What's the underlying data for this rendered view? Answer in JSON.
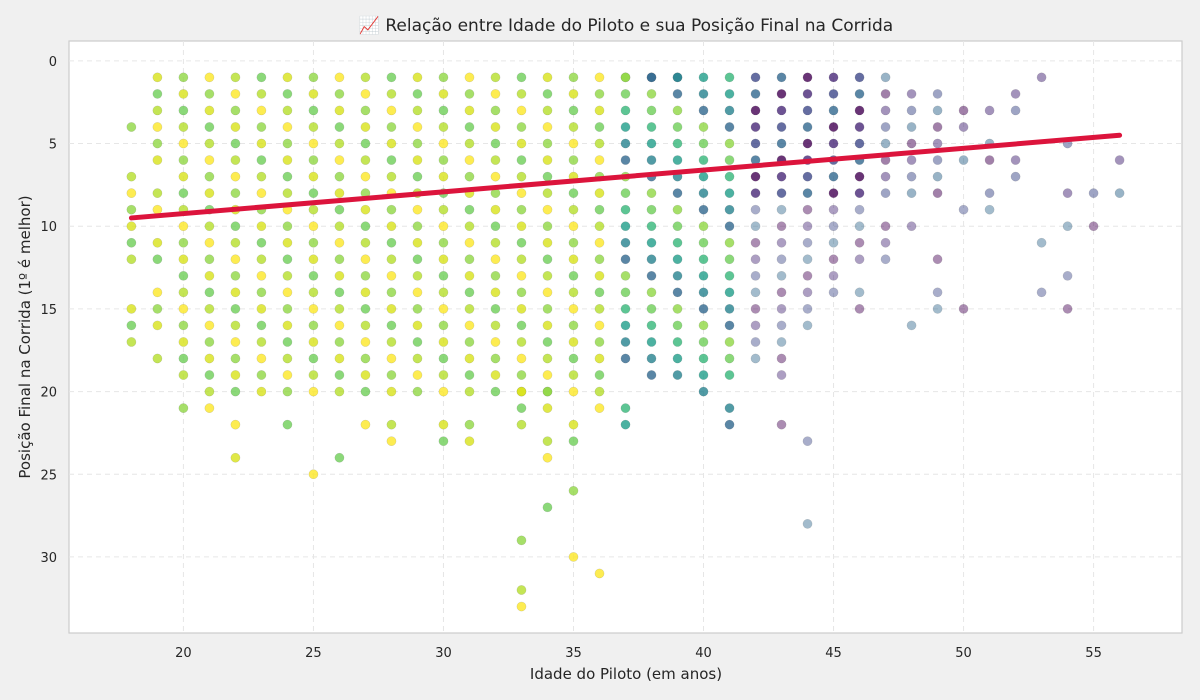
{
  "chart_data": {
    "type": "scatter",
    "title": "📈 Relação entre Idade do Piloto e sua Posição Final na Corrida",
    "xlabel": "Idade do Piloto (em anos)",
    "ylabel": "Posição Final na Corrida (1º é melhor)",
    "xlim": [
      15.6,
      58.4
    ],
    "ylim": [
      34.6,
      -1.2
    ],
    "y_inverted": true,
    "xticks": [
      20,
      25,
      30,
      35,
      40,
      45,
      50,
      55
    ],
    "yticks": [
      0,
      5,
      10,
      15,
      20,
      25,
      30
    ],
    "grid": true,
    "colormap": "viridis (lighter = younger / more common)",
    "trend_line": {
      "color": "#dc143c",
      "points": [
        [
          18,
          9.5
        ],
        [
          56,
          4.5
        ]
      ]
    },
    "series": [
      {
        "age_range": [
          18,
          36
        ],
        "position_range": [
          1,
          22
        ],
        "dense": true
      }
    ],
    "points": [
      [
        18,
        4
      ],
      [
        18,
        7
      ],
      [
        18,
        8
      ],
      [
        18,
        9
      ],
      [
        18,
        10
      ],
      [
        18,
        11
      ],
      [
        18,
        12
      ],
      [
        18,
        15
      ],
      [
        18,
        16
      ],
      [
        18,
        17
      ],
      [
        19,
        1
      ],
      [
        19,
        2
      ],
      [
        19,
        3
      ],
      [
        19,
        4
      ],
      [
        19,
        5
      ],
      [
        19,
        6
      ],
      [
        19,
        8
      ],
      [
        19,
        9
      ],
      [
        19,
        11
      ],
      [
        19,
        12
      ],
      [
        19,
        14
      ],
      [
        19,
        15
      ],
      [
        19,
        16
      ],
      [
        19,
        18
      ],
      [
        20,
        1
      ],
      [
        20,
        2
      ],
      [
        20,
        3
      ],
      [
        20,
        4
      ],
      [
        20,
        5
      ],
      [
        20,
        6
      ],
      [
        20,
        7
      ],
      [
        20,
        8
      ],
      [
        20,
        9
      ],
      [
        20,
        10
      ],
      [
        20,
        11
      ],
      [
        20,
        12
      ],
      [
        20,
        13
      ],
      [
        20,
        14
      ],
      [
        20,
        15
      ],
      [
        20,
        16
      ],
      [
        20,
        17
      ],
      [
        20,
        18
      ],
      [
        20,
        19
      ],
      [
        20,
        21
      ],
      [
        21,
        21
      ],
      [
        22,
        22
      ],
      [
        22,
        24
      ],
      [
        24,
        22
      ],
      [
        25,
        25
      ],
      [
        26,
        24
      ],
      [
        27,
        22
      ],
      [
        28,
        22
      ],
      [
        28,
        23
      ],
      [
        30,
        22
      ],
      [
        30,
        23
      ],
      [
        31,
        22
      ],
      [
        31,
        23
      ],
      [
        33,
        20
      ],
      [
        33,
        21
      ],
      [
        33,
        22
      ],
      [
        33,
        29
      ],
      [
        33,
        32
      ],
      [
        33,
        33
      ],
      [
        34,
        20
      ],
      [
        34,
        21
      ],
      [
        34,
        23
      ],
      [
        34,
        24
      ],
      [
        34,
        27
      ],
      [
        35,
        22
      ],
      [
        35,
        23
      ],
      [
        35,
        26
      ],
      [
        35,
        30
      ],
      [
        36,
        21
      ],
      [
        36,
        31
      ],
      [
        37,
        1
      ],
      [
        37,
        21
      ],
      [
        37,
        22
      ],
      [
        38,
        1
      ],
      [
        38,
        19
      ],
      [
        39,
        1
      ],
      [
        39,
        19
      ],
      [
        40,
        1
      ],
      [
        40,
        2
      ],
      [
        40,
        3
      ],
      [
        40,
        4
      ],
      [
        40,
        5
      ],
      [
        40,
        6
      ],
      [
        40,
        7
      ],
      [
        40,
        8
      ],
      [
        40,
        9
      ],
      [
        40,
        10
      ],
      [
        40,
        11
      ],
      [
        40,
        12
      ],
      [
        40,
        13
      ],
      [
        40,
        14
      ],
      [
        40,
        15
      ],
      [
        40,
        16
      ],
      [
        40,
        17
      ],
      [
        40,
        18
      ],
      [
        40,
        19
      ],
      [
        40,
        20
      ],
      [
        41,
        1
      ],
      [
        41,
        2
      ],
      [
        41,
        3
      ],
      [
        41,
        4
      ],
      [
        41,
        5
      ],
      [
        41,
        6
      ],
      [
        41,
        7
      ],
      [
        41,
        8
      ],
      [
        41,
        9
      ],
      [
        41,
        10
      ],
      [
        41,
        11
      ],
      [
        41,
        12
      ],
      [
        41,
        13
      ],
      [
        41,
        14
      ],
      [
        41,
        15
      ],
      [
        41,
        16
      ],
      [
        41,
        17
      ],
      [
        41,
        18
      ],
      [
        41,
        19
      ],
      [
        41,
        21
      ],
      [
        41,
        22
      ],
      [
        42,
        1
      ],
      [
        42,
        2
      ],
      [
        42,
        3
      ],
      [
        42,
        4
      ],
      [
        42,
        5
      ],
      [
        42,
        6
      ],
      [
        42,
        7
      ],
      [
        42,
        8
      ],
      [
        42,
        9
      ],
      [
        42,
        10
      ],
      [
        42,
        11
      ],
      [
        42,
        12
      ],
      [
        42,
        13
      ],
      [
        42,
        14
      ],
      [
        42,
        15
      ],
      [
        42,
        16
      ],
      [
        42,
        17
      ],
      [
        42,
        18
      ],
      [
        43,
        1
      ],
      [
        43,
        2
      ],
      [
        43,
        3
      ],
      [
        43,
        4
      ],
      [
        43,
        5
      ],
      [
        43,
        6
      ],
      [
        43,
        7
      ],
      [
        43,
        8
      ],
      [
        43,
        9
      ],
      [
        43,
        10
      ],
      [
        43,
        11
      ],
      [
        43,
        12
      ],
      [
        43,
        13
      ],
      [
        43,
        14
      ],
      [
        43,
        15
      ],
      [
        43,
        16
      ],
      [
        43,
        17
      ],
      [
        43,
        18
      ],
      [
        43,
        19
      ],
      [
        43,
        22
      ],
      [
        44,
        1
      ],
      [
        44,
        2
      ],
      [
        44,
        3
      ],
      [
        44,
        4
      ],
      [
        44,
        5
      ],
      [
        44,
        6
      ],
      [
        44,
        7
      ],
      [
        44,
        8
      ],
      [
        44,
        9
      ],
      [
        44,
        10
      ],
      [
        44,
        11
      ],
      [
        44,
        12
      ],
      [
        44,
        13
      ],
      [
        44,
        14
      ],
      [
        44,
        15
      ],
      [
        44,
        16
      ],
      [
        44,
        23
      ],
      [
        44,
        28
      ],
      [
        45,
        1
      ],
      [
        45,
        2
      ],
      [
        45,
        3
      ],
      [
        45,
        4
      ],
      [
        45,
        5
      ],
      [
        45,
        6
      ],
      [
        45,
        7
      ],
      [
        45,
        8
      ],
      [
        45,
        9
      ],
      [
        45,
        10
      ],
      [
        45,
        11
      ],
      [
        45,
        12
      ],
      [
        45,
        13
      ],
      [
        45,
        14
      ],
      [
        46,
        1
      ],
      [
        46,
        2
      ],
      [
        46,
        3
      ],
      [
        46,
        4
      ],
      [
        46,
        5
      ],
      [
        46,
        6
      ],
      [
        46,
        7
      ],
      [
        46,
        8
      ],
      [
        46,
        9
      ],
      [
        46,
        10
      ],
      [
        46,
        11
      ],
      [
        46,
        12
      ],
      [
        46,
        14
      ],
      [
        46,
        15
      ],
      [
        47,
        1
      ],
      [
        47,
        2
      ],
      [
        47,
        3
      ],
      [
        47,
        4
      ],
      [
        47,
        5
      ],
      [
        47,
        6
      ],
      [
        47,
        7
      ],
      [
        47,
        8
      ],
      [
        47,
        10
      ],
      [
        47,
        11
      ],
      [
        47,
        12
      ],
      [
        48,
        2
      ],
      [
        48,
        3
      ],
      [
        48,
        4
      ],
      [
        48,
        5
      ],
      [
        48,
        6
      ],
      [
        48,
        7
      ],
      [
        48,
        8
      ],
      [
        48,
        10
      ],
      [
        48,
        16
      ],
      [
        49,
        2
      ],
      [
        49,
        3
      ],
      [
        49,
        4
      ],
      [
        49,
        5
      ],
      [
        49,
        6
      ],
      [
        49,
        7
      ],
      [
        49,
        8
      ],
      [
        49,
        12
      ],
      [
        49,
        14
      ],
      [
        49,
        15
      ],
      [
        50,
        3
      ],
      [
        50,
        4
      ],
      [
        50,
        6
      ],
      [
        50,
        9
      ],
      [
        50,
        15
      ],
      [
        51,
        3
      ],
      [
        51,
        5
      ],
      [
        51,
        6
      ],
      [
        51,
        8
      ],
      [
        51,
        9
      ],
      [
        52,
        2
      ],
      [
        52,
        3
      ],
      [
        52,
        6
      ],
      [
        52,
        7
      ],
      [
        53,
        1
      ],
      [
        53,
        11
      ],
      [
        53,
        14
      ],
      [
        54,
        5
      ],
      [
        54,
        8
      ],
      [
        54,
        10
      ],
      [
        54,
        13
      ],
      [
        54,
        15
      ],
      [
        55,
        8
      ],
      [
        55,
        10
      ],
      [
        56,
        6
      ],
      [
        56,
        8
      ]
    ]
  }
}
